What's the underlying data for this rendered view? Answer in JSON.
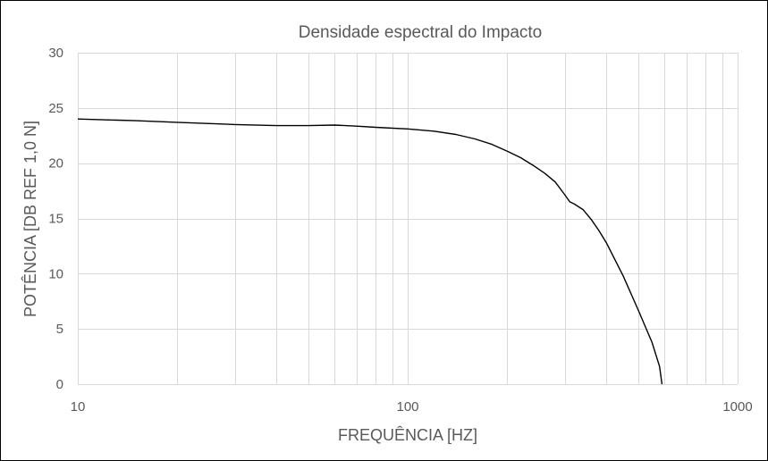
{
  "chart_data": {
    "type": "line",
    "title": "Densidade espectral do Impacto",
    "xlabel": "FREQUÊNCIA [HZ]",
    "ylabel": "POTÊNCIA [DB REF 1,0 N]",
    "x_scale": "log",
    "xlim": [
      10,
      1000
    ],
    "ylim": [
      0,
      30
    ],
    "x_ticks": [
      "10",
      "100",
      "1000"
    ],
    "y_ticks": [
      "0",
      "5",
      "10",
      "15",
      "20",
      "25",
      "30"
    ],
    "grid": true,
    "legend": "none",
    "line_color": "#000000",
    "series": [
      {
        "x": [
          10,
          15,
          20,
          30,
          40,
          50,
          60,
          70,
          80,
          100,
          120,
          140,
          160,
          180,
          200,
          220,
          240,
          260,
          280,
          300,
          310,
          320,
          340,
          360,
          380,
          400,
          450,
          500,
          550,
          580,
          590
        ],
        "values": [
          24.0,
          23.85,
          23.7,
          23.5,
          23.4,
          23.4,
          23.45,
          23.35,
          23.25,
          23.1,
          22.9,
          22.6,
          22.2,
          21.7,
          21.1,
          20.5,
          19.8,
          19.1,
          18.3,
          17.1,
          16.5,
          16.3,
          15.8,
          14.9,
          13.9,
          12.8,
          9.8,
          6.7,
          3.8,
          1.6,
          0
        ]
      }
    ]
  }
}
